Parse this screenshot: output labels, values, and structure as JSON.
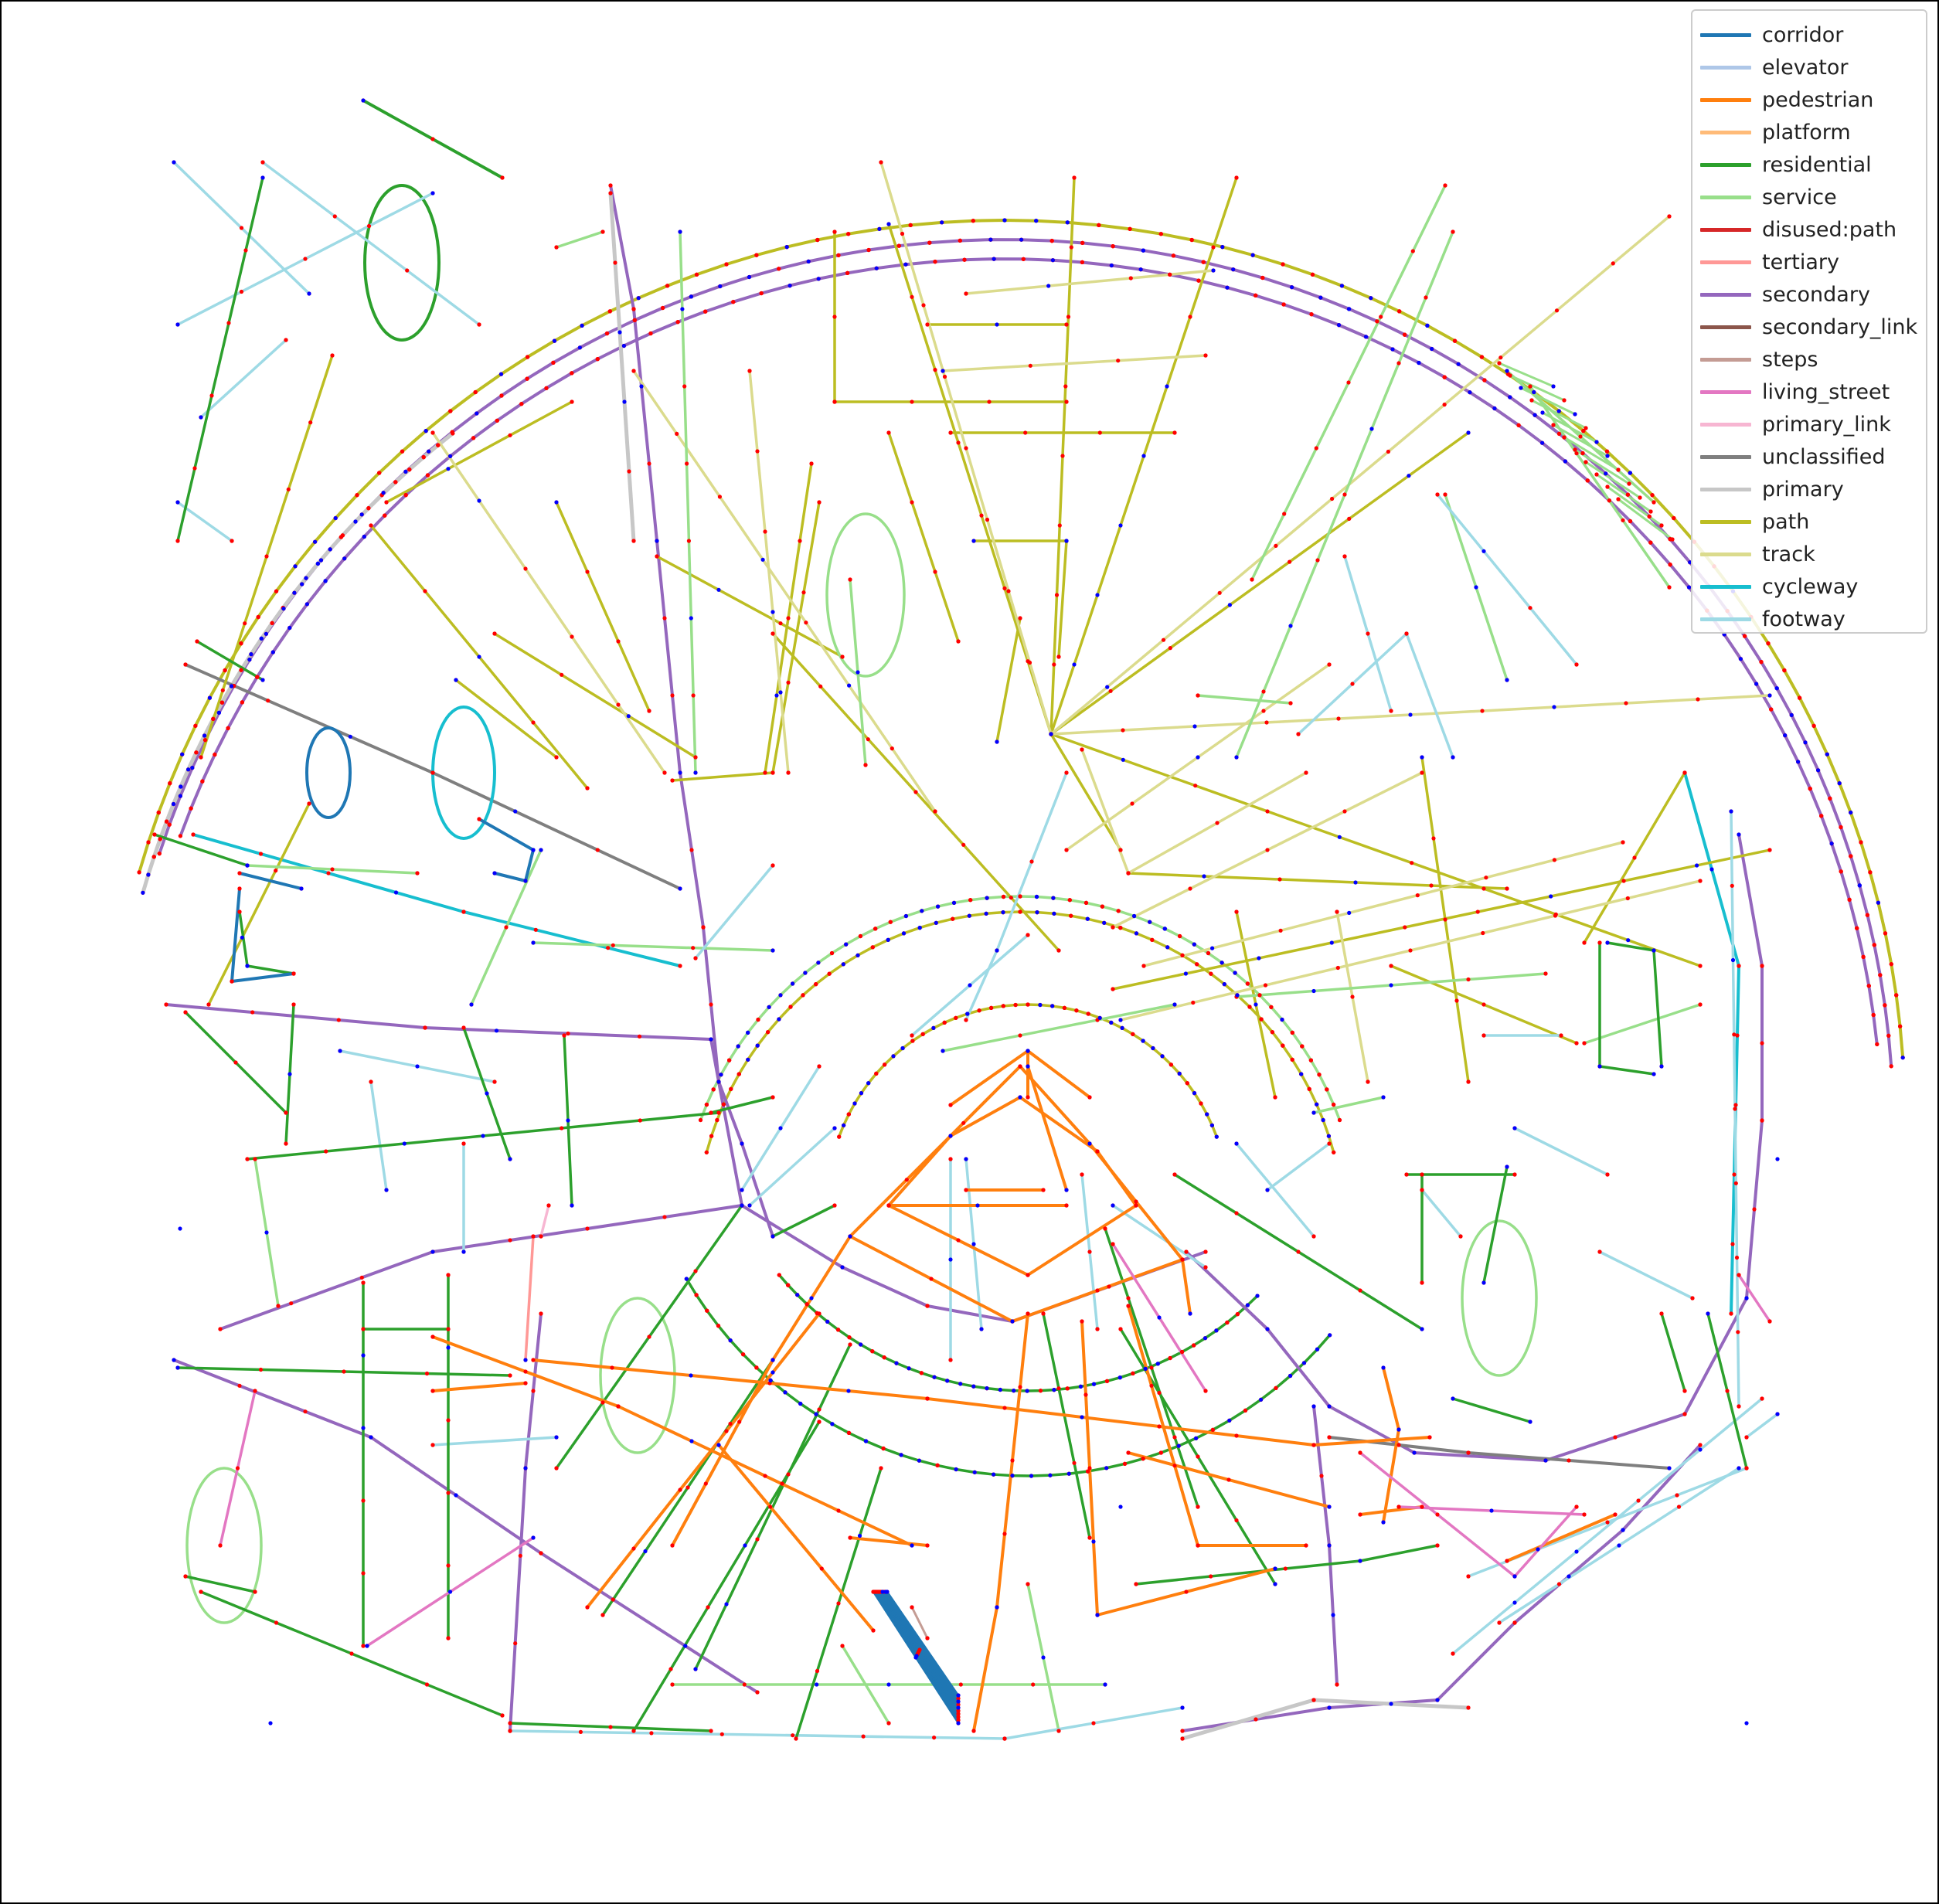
{
  "legend": {
    "items": [
      {
        "label": "corridor",
        "color": "#1f77b4"
      },
      {
        "label": "elevator",
        "color": "#aec7e8"
      },
      {
        "label": "pedestrian",
        "color": "#ff7f0e"
      },
      {
        "label": "platform",
        "color": "#ffbb78"
      },
      {
        "label": "residential",
        "color": "#2ca02c"
      },
      {
        "label": "service",
        "color": "#98df8a"
      },
      {
        "label": "disused:path",
        "color": "#d62728"
      },
      {
        "label": "tertiary",
        "color": "#ff9896"
      },
      {
        "label": "secondary",
        "color": "#9467bd"
      },
      {
        "label": "secondary_link",
        "color": "#8c564b"
      },
      {
        "label": "steps",
        "color": "#c49c94"
      },
      {
        "label": "living_street",
        "color": "#e377c2"
      },
      {
        "label": "primary_link",
        "color": "#f7b6d2"
      },
      {
        "label": "unclassified",
        "color": "#7f7f7f"
      },
      {
        "label": "primary",
        "color": "#c7c7c7"
      },
      {
        "label": "path",
        "color": "#bcbd22"
      },
      {
        "label": "track",
        "color": "#dbdb8d"
      },
      {
        "label": "cycleway",
        "color": "#17becf"
      },
      {
        "label": "footway",
        "color": "#9edae5"
      }
    ]
  },
  "map": {
    "node_colors": {
      "junction": "#ff0000",
      "endpoint": "#0000ff"
    }
  }
}
